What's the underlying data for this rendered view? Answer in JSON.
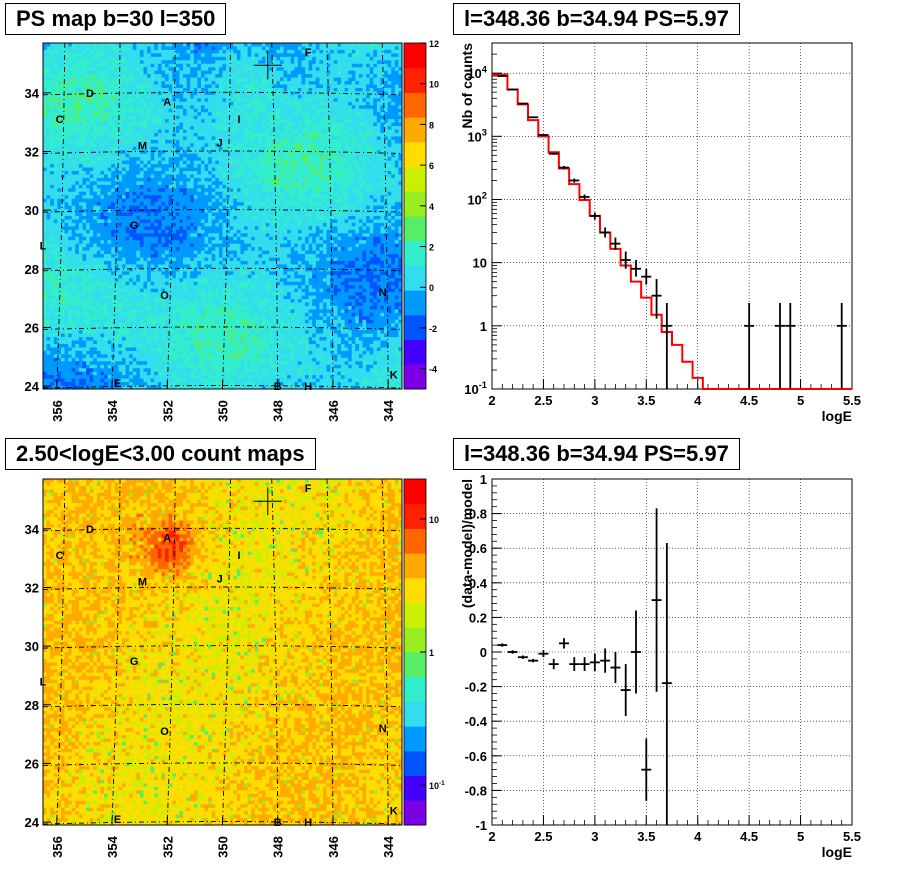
{
  "panels": {
    "ps_map_title": "PS map b=30 l=350",
    "spectrum_title": "l=348.36 b=34.94 PS=5.97",
    "count_map_title": "2.50<logE<3.00 count maps",
    "residual_title": "l=348.36 b=34.94 PS=5.97"
  },
  "chart_data": [
    {
      "id": "ps_map",
      "type": "heatmap",
      "title": "PS map b=30 l=350",
      "x_ticks": [
        "356",
        "354",
        "352",
        "350",
        "348",
        "346",
        "344"
      ],
      "x_tick_values": [
        356,
        354,
        352,
        350,
        348,
        346,
        344
      ],
      "y_ticks": [
        "24",
        "26",
        "28",
        "30",
        "32",
        "34"
      ],
      "y_tick_values": [
        24,
        26,
        28,
        30,
        32,
        34
      ],
      "xlim": [
        356.5,
        343.5
      ],
      "ylim": [
        23.9,
        35.7
      ],
      "colorbar": {
        "min": -5,
        "max": 12,
        "ticks": [
          "-4",
          "-2",
          "0",
          "2",
          "4",
          "6",
          "8",
          "10",
          "12"
        ],
        "tick_values": [
          -4,
          -2,
          0,
          2,
          4,
          6,
          8,
          10,
          12
        ]
      },
      "dominant_color": "#33ddee",
      "sources": [
        {
          "label": "A",
          "l": 352.0,
          "b": 33.7
        },
        {
          "label": "C",
          "l": 355.9,
          "b": 33.1
        },
        {
          "label": "D",
          "l": 354.8,
          "b": 34.0
        },
        {
          "label": "E",
          "l": 353.8,
          "b": 24.1
        },
        {
          "label": "F",
          "l": 346.9,
          "b": 35.4
        },
        {
          "label": "G",
          "l": 353.2,
          "b": 29.5
        },
        {
          "label": "H",
          "l": 346.9,
          "b": 24.0
        },
        {
          "label": "I",
          "l": 349.4,
          "b": 33.1
        },
        {
          "label": "J",
          "l": 350.1,
          "b": 32.3
        },
        {
          "label": "K",
          "l": 343.8,
          "b": 24.4
        },
        {
          "label": "L",
          "l": 356.5,
          "b": 28.8
        },
        {
          "label": "M",
          "l": 352.9,
          "b": 32.2
        },
        {
          "label": "N",
          "l": 344.2,
          "b": 27.2
        },
        {
          "label": "O",
          "l": 352.1,
          "b": 27.1
        },
        {
          "label": "B",
          "l": 348.0,
          "b": 24.0
        }
      ],
      "marker": {
        "l": 348.36,
        "b": 34.94
      }
    },
    {
      "id": "spectrum",
      "type": "line",
      "title": "l=348.36 b=34.94 PS=5.97",
      "xlabel": "logE",
      "ylabel": "Nb of counts",
      "xlim": [
        2,
        5.5
      ],
      "ylim": [
        0.1,
        30000
      ],
      "yscale": "log",
      "x_ticks": [
        "2",
        "2.5",
        "3",
        "3.5",
        "4",
        "4.5",
        "5",
        "5.5"
      ],
      "x_tick_values": [
        2,
        2.5,
        3,
        3.5,
        4,
        4.5,
        5,
        5.5
      ],
      "y_ticks": [
        "10^-1",
        "1",
        "10",
        "10^2",
        "10^3",
        "10^4"
      ],
      "y_tick_values": [
        0.1,
        1,
        10,
        100,
        1000,
        10000
      ],
      "grid": true,
      "model": {
        "color": "#ff0000",
        "edges": [
          2.05,
          2.15,
          2.25,
          2.35,
          2.45,
          2.55,
          2.65,
          2.75,
          2.85,
          2.95,
          3.05,
          3.15,
          3.25,
          3.35,
          3.45,
          3.55,
          3.65,
          3.75,
          3.85,
          3.95,
          4.05,
          4.15,
          4.25,
          4.35,
          4.45,
          4.55,
          4.65,
          4.75,
          4.85,
          4.95,
          5.05,
          5.15,
          5.25,
          5.35,
          5.45,
          5.5
        ],
        "values": [
          9500,
          5500,
          3200,
          1800,
          1000,
          560,
          310,
          175,
          98,
          55,
          30,
          16.5,
          9,
          5,
          2.8,
          1.5,
          0.8,
          0.5,
          0.27,
          0.15,
          0.1,
          0.1,
          0.1,
          0.1,
          0.1,
          0.1,
          0.1,
          0.1,
          0.1,
          0.1,
          0.1,
          0.1,
          0.1,
          0.1,
          0.1
        ]
      },
      "points": {
        "x": [
          2.1,
          2.2,
          2.3,
          2.4,
          2.5,
          2.6,
          2.7,
          2.8,
          2.9,
          3.0,
          3.1,
          3.2,
          3.3,
          3.4,
          3.5,
          3.6,
          3.7,
          4.5,
          4.8,
          4.9,
          5.4
        ],
        "y": [
          9000,
          5500,
          3300,
          2000,
          1050,
          530,
          320,
          200,
          110,
          55,
          30,
          20,
          11,
          8,
          6,
          3,
          1,
          1,
          1,
          1,
          1
        ],
        "ylow": [
          8900,
          5420,
          3240,
          1950,
          1020,
          510,
          300,
          185,
          100,
          48,
          25,
          16,
          8,
          6,
          4.5,
          1.3,
          0.1,
          0.1,
          0.1,
          0.1,
          0.1
        ],
        "yhigh": [
          9100,
          5580,
          3360,
          2050,
          1080,
          550,
          340,
          215,
          120,
          62,
          36,
          25,
          15,
          11,
          8,
          5.5,
          2.3,
          2.3,
          2.3,
          2.3,
          2.3
        ]
      }
    },
    {
      "id": "count_map",
      "type": "heatmap",
      "title": "2.50<logE<3.00 count maps",
      "x_ticks": [
        "356",
        "354",
        "352",
        "350",
        "348",
        "346",
        "344"
      ],
      "x_tick_values": [
        356,
        354,
        352,
        350,
        348,
        346,
        344
      ],
      "y_ticks": [
        "24",
        "26",
        "28",
        "30",
        "32",
        "34"
      ],
      "y_tick_values": [
        24,
        26,
        28,
        30,
        32,
        34
      ],
      "xlim": [
        356.5,
        343.5
      ],
      "ylim": [
        23.9,
        35.7
      ],
      "colorbar": {
        "scale": "log",
        "min": 0.05,
        "max": 20,
        "ticks": [
          "10",
          "1",
          "10^-1"
        ],
        "tick_values": [
          10,
          1,
          0.1
        ]
      },
      "dominant_color": "#ffaa22",
      "sources_ref": "ps_map",
      "marker": {
        "l": 348.36,
        "b": 34.94
      }
    },
    {
      "id": "residual",
      "type": "scatter",
      "title": "l=348.36 b=34.94 PS=5.97",
      "xlabel": "logE",
      "ylabel": "(data-model)/model",
      "xlim": [
        2,
        5.5
      ],
      "ylim": [
        -1,
        1
      ],
      "x_ticks": [
        "2",
        "2.5",
        "3",
        "3.5",
        "4",
        "4.5",
        "5",
        "5.5"
      ],
      "x_tick_values": [
        2,
        2.5,
        3,
        3.5,
        4,
        4.5,
        5,
        5.5
      ],
      "y_ticks": [
        "-1",
        "-0.8",
        "-0.6",
        "-0.4",
        "-0.2",
        "0",
        "0.2",
        "0.4",
        "0.6",
        "0.8",
        "1"
      ],
      "y_tick_values": [
        -1,
        -0.8,
        -0.6,
        -0.4,
        -0.2,
        0,
        0.2,
        0.4,
        0.6,
        0.8,
        1
      ],
      "grid": true,
      "points": {
        "x": [
          2.1,
          2.2,
          2.3,
          2.4,
          2.5,
          2.6,
          2.7,
          2.8,
          2.9,
          3.0,
          3.1,
          3.2,
          3.3,
          3.4,
          3.5,
          3.6,
          3.7
        ],
        "y": [
          0.04,
          0.0,
          -0.03,
          -0.05,
          -0.01,
          -0.07,
          0.05,
          -0.07,
          -0.07,
          -0.06,
          -0.05,
          -0.09,
          -0.22,
          0.0,
          -0.68,
          0.3,
          -0.18
        ],
        "ylow": [
          0.03,
          -0.01,
          -0.04,
          -0.06,
          -0.03,
          -0.1,
          0.02,
          -0.11,
          -0.11,
          -0.11,
          -0.12,
          -0.18,
          -0.37,
          -0.24,
          -0.86,
          -0.23,
          -1.0
        ],
        "yhigh": [
          0.05,
          0.01,
          -0.02,
          -0.04,
          0.01,
          -0.04,
          0.08,
          -0.03,
          -0.03,
          -0.01,
          0.02,
          0.0,
          -0.07,
          0.24,
          -0.5,
          0.83,
          0.63
        ]
      }
    }
  ]
}
